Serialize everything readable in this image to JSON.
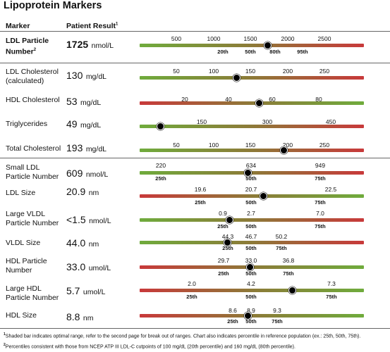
{
  "title": "Lipoprotein Markers",
  "headers": {
    "marker": "Marker",
    "result": "Patient Result",
    "result_sup": "1"
  },
  "colors": {
    "red": "#c8393a",
    "green": "#6fab3c",
    "olive": "#8d7a38"
  },
  "rows": [
    {
      "marker": "LDL Particle Number",
      "marker_sup": "2",
      "bold": true,
      "value": "1725",
      "unit": "nmol/L",
      "ticks": [
        "500",
        "1000",
        "1500",
        "2000",
        "2500"
      ],
      "percentiles": [
        "20th",
        "50th",
        "80th",
        "95th"
      ],
      "position": 0.57,
      "gradient": "green-red"
    },
    {
      "marker": "LDL Cholesterol (calculated)",
      "value": "130",
      "unit": "mg/dL",
      "ticks": [
        "50",
        "100",
        "150",
        "200",
        "250"
      ],
      "percentiles": [],
      "position": 0.43,
      "gradient": "green-red"
    },
    {
      "marker": "HDL Cholesterol",
      "value": "53",
      "unit": "mg/dL",
      "ticks": [
        "20",
        "40",
        "60",
        "80"
      ],
      "percentiles": [],
      "position": 0.53,
      "gradient": "red-green"
    },
    {
      "marker": "Triglycerides",
      "value": "49",
      "unit": "mg/dL",
      "ticks": [
        "150",
        "300",
        "450"
      ],
      "percentiles": [],
      "position": 0.09,
      "gradient": "green-red"
    },
    {
      "marker": "Total Cholesterol",
      "value": "193",
      "unit": "mg/dL",
      "ticks": [
        "50",
        "100",
        "150",
        "200",
        "250"
      ],
      "percentiles": [],
      "position": 0.64,
      "gradient": "green-red"
    },
    {
      "marker": "Small LDL Particle Number",
      "value": "609",
      "unit": "nmol/L",
      "ticks": [
        "220",
        "634",
        "949"
      ],
      "percentiles": [
        "25th",
        "50th",
        "75th"
      ],
      "position": 0.48,
      "gradient": "green-red"
    },
    {
      "marker": "LDL Size",
      "value": "20.9",
      "unit": "nm",
      "ticks": [
        "19.6",
        "20.7",
        "22.5"
      ],
      "percentiles": [
        "25th",
        "50th",
        "75th"
      ],
      "position": 0.55,
      "gradient": "red-green"
    },
    {
      "marker": "Large VLDL Particle Number",
      "value": "<1.5",
      "unit": "nmol/L",
      "ticks": [
        "0.9",
        "2.7",
        "7.0"
      ],
      "percentiles": [
        "25th",
        "50th",
        "75th"
      ],
      "position": 0.4,
      "gradient": "green-red"
    },
    {
      "marker": "VLDL Size",
      "value": "44.0",
      "unit": "nm",
      "ticks": [
        "44.3",
        "46.7",
        "50.2"
      ],
      "percentiles": [
        "25th",
        "50th",
        "75th"
      ],
      "position": 0.39,
      "gradient": "green-red"
    },
    {
      "marker": "HDL Particle Number",
      "value": "33.0",
      "unit": "umol/L",
      "ticks": [
        "29.7",
        "33.0",
        "36.8"
      ],
      "percentiles": [
        "25th",
        "50th",
        "75th"
      ],
      "position": 0.49,
      "gradient": "red-green"
    },
    {
      "marker": "Large HDL Particle Number",
      "value": "5.7",
      "unit": "umol/L",
      "ticks": [
        "2.0",
        "4.2",
        "7.3"
      ],
      "percentiles": [
        "25th",
        "50th",
        "75th"
      ],
      "position": 0.68,
      "gradient": "red-green"
    },
    {
      "marker": "HDL Size",
      "value": "8.8",
      "unit": "nm",
      "ticks": [
        "8.6",
        "8.9",
        "9.3"
      ],
      "percentiles": [
        "25th",
        "50th",
        "75th"
      ],
      "position": 0.48,
      "gradient": "red-green"
    }
  ],
  "footnotes": [
    {
      "sup": "1",
      "text": "Shaded bar indicates optimal range, refer to the second page for break out of ranges. Chart also indicates percentile in reference population (ex.: 25th, 50th, 75th)."
    },
    {
      "sup": "2",
      "text": "Percentiles consistent with those from NCEP ATP III LDL-C cutpoints of 100 mg/dL (20th percentile) and 160 mg/dL (80th percentile)."
    }
  ]
}
